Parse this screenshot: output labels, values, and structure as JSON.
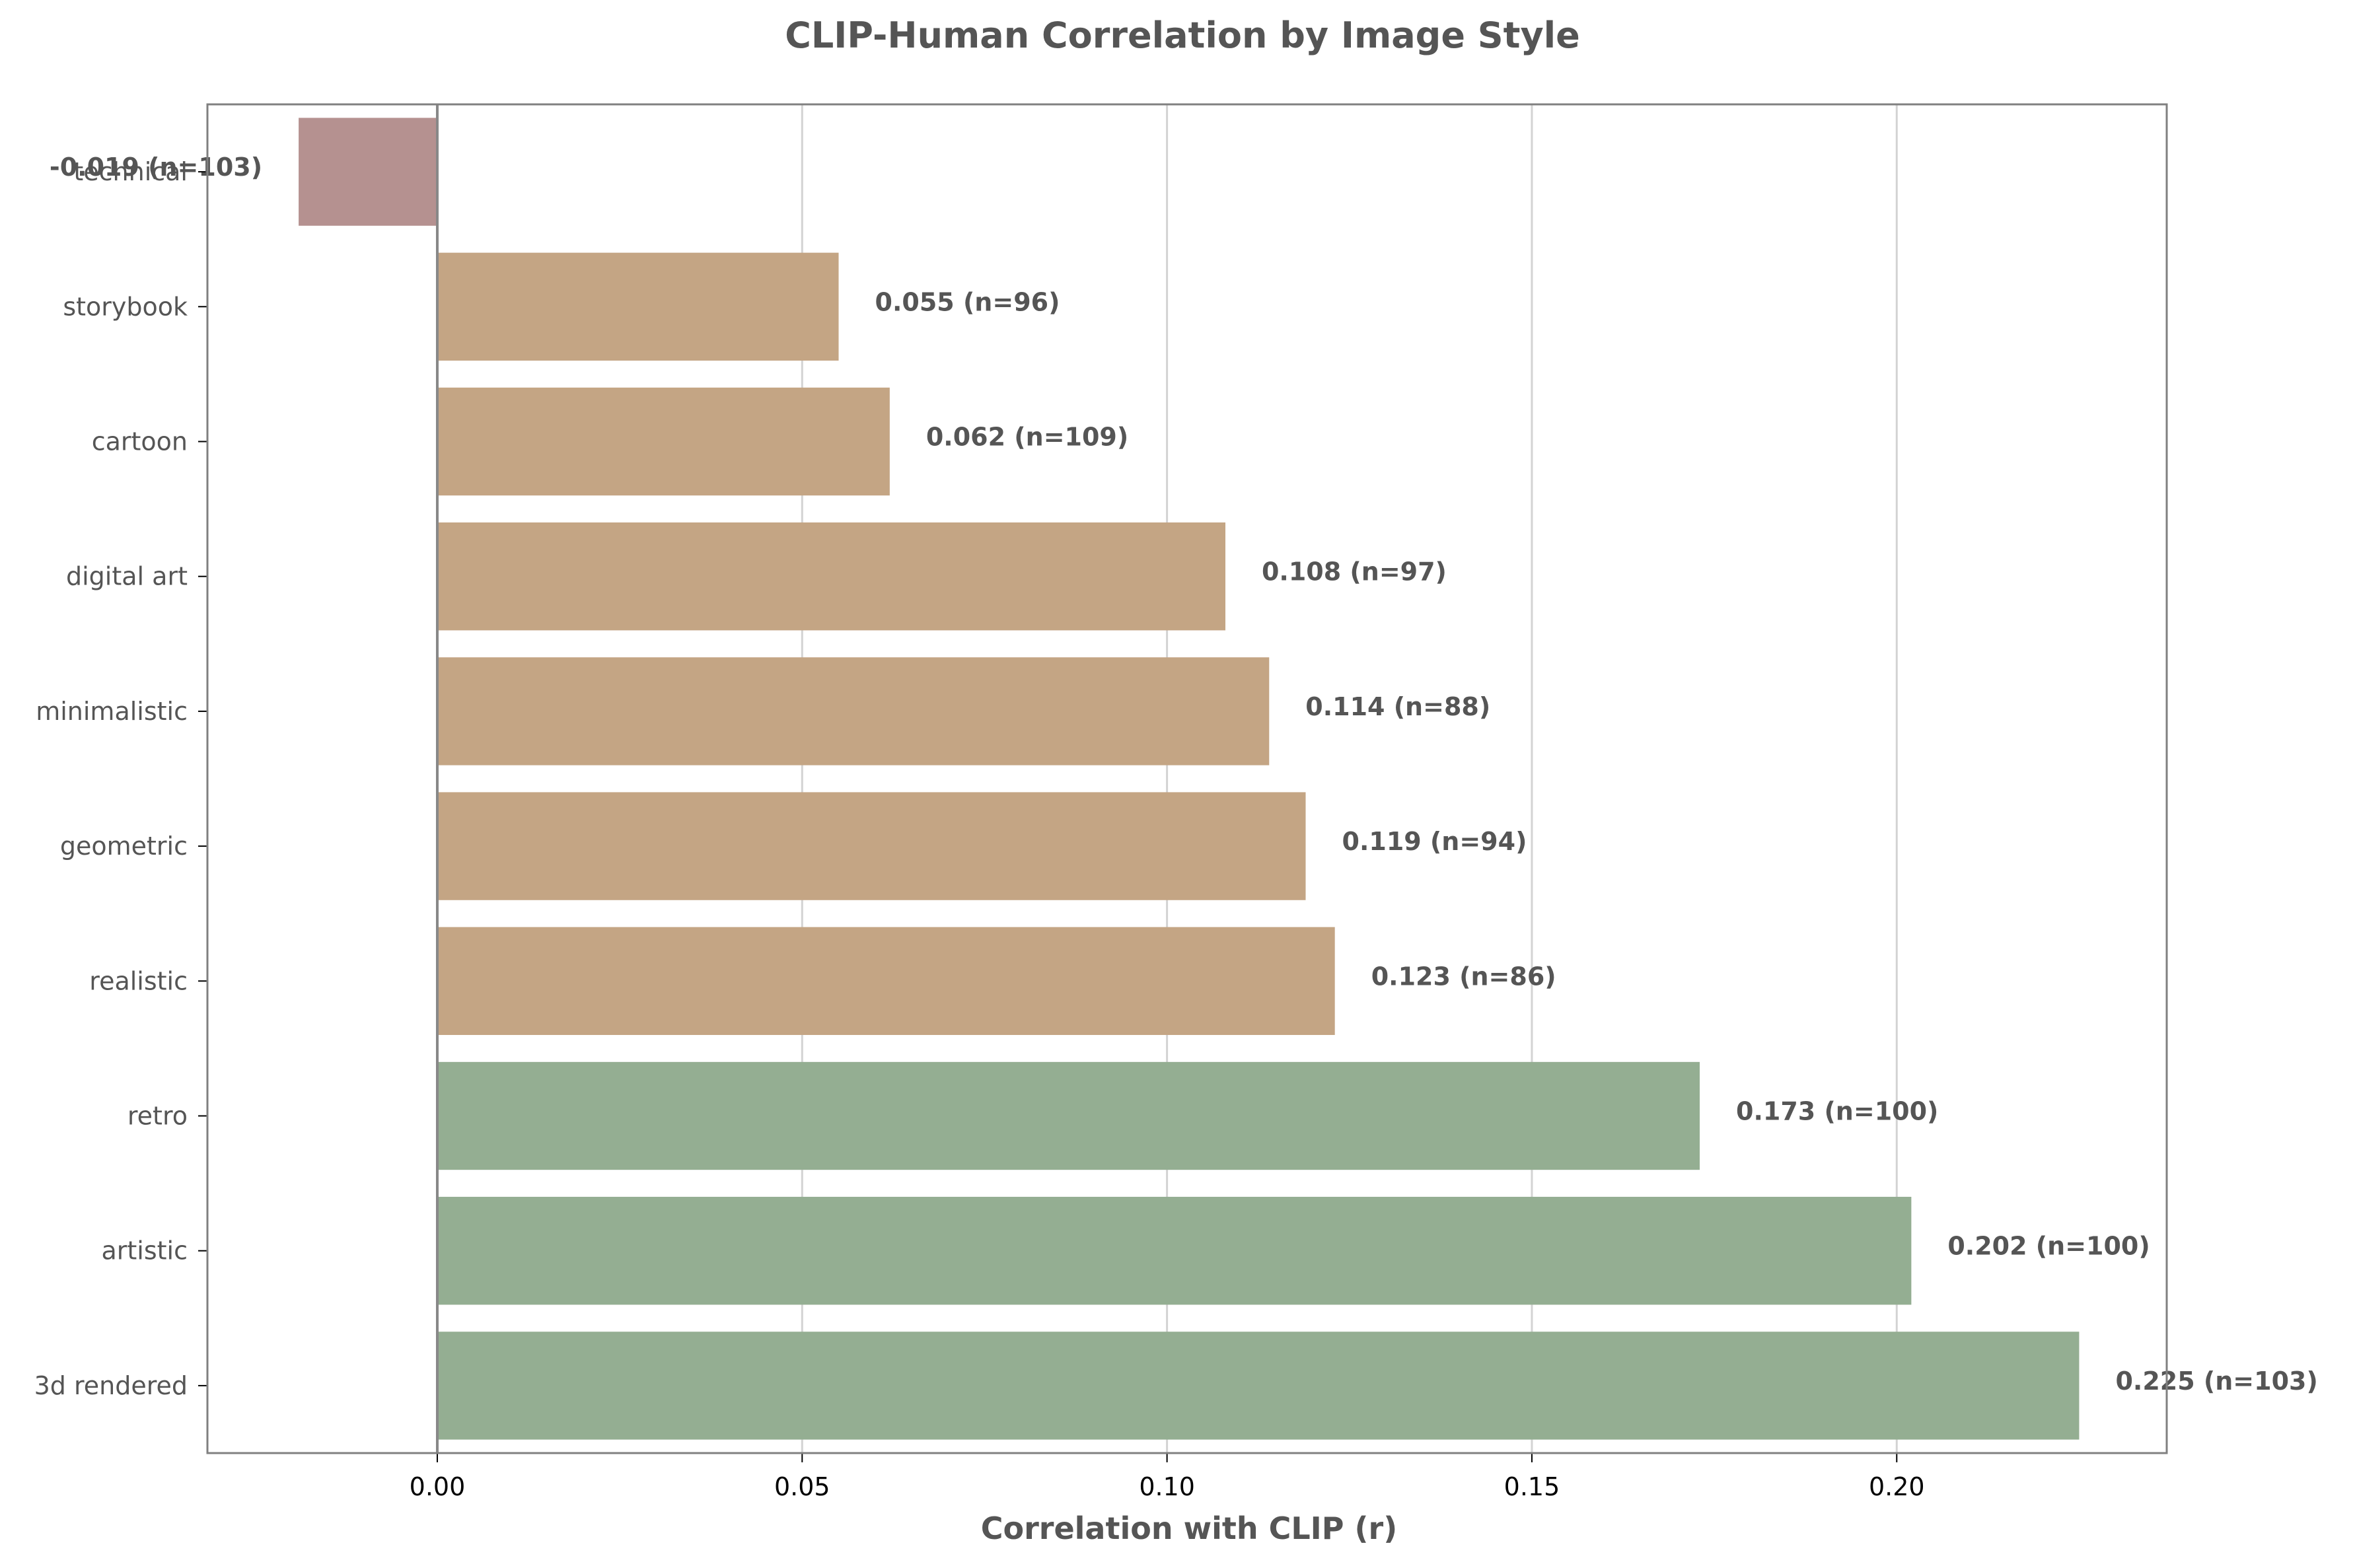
{
  "chart_data": {
    "type": "bar",
    "orientation": "horizontal",
    "title": "CLIP-Human Correlation by Image Style",
    "xlabel": "Correlation with CLIP (r)",
    "ylabel": "",
    "xlim": [
      -0.0315,
      0.237
    ],
    "xticks": [
      0.0,
      0.05,
      0.1,
      0.15,
      0.2
    ],
    "xtick_labels": [
      "0.00",
      "0.05",
      "0.10",
      "0.15",
      "0.20"
    ],
    "grid": "vertical",
    "legend": "none",
    "categories": [
      "technical",
      "storybook",
      "cartoon",
      "digital art",
      "minimalistic",
      "geometric",
      "realistic",
      "retro",
      "artistic",
      "3d rendered"
    ],
    "values": [
      -0.019,
      0.055,
      0.062,
      0.108,
      0.114,
      0.119,
      0.123,
      0.173,
      0.202,
      0.225
    ],
    "counts": [
      103,
      96,
      109,
      97,
      88,
      94,
      86,
      100,
      100,
      103
    ],
    "data_labels": [
      "-0.019 (n=103)",
      "0.055 (n=96)",
      "0.062 (n=109)",
      "0.108 (n=97)",
      "0.114 (n=88)",
      "0.119 (n=94)",
      "0.123 (n=86)",
      "0.173 (n=100)",
      "0.202 (n=100)",
      "0.225 (n=103)"
    ],
    "colors": {
      "negative": "#b59190",
      "medium": "#c4a584",
      "high": "#94ae92",
      "axis": "#808080",
      "grid": "#d3d3d3",
      "zero_line": "#888888"
    },
    "bar_colors": [
      "#b59190",
      "#c4a584",
      "#c4a584",
      "#c4a584",
      "#c4a584",
      "#c4a584",
      "#c4a584",
      "#94ae92",
      "#94ae92",
      "#94ae92"
    ]
  }
}
